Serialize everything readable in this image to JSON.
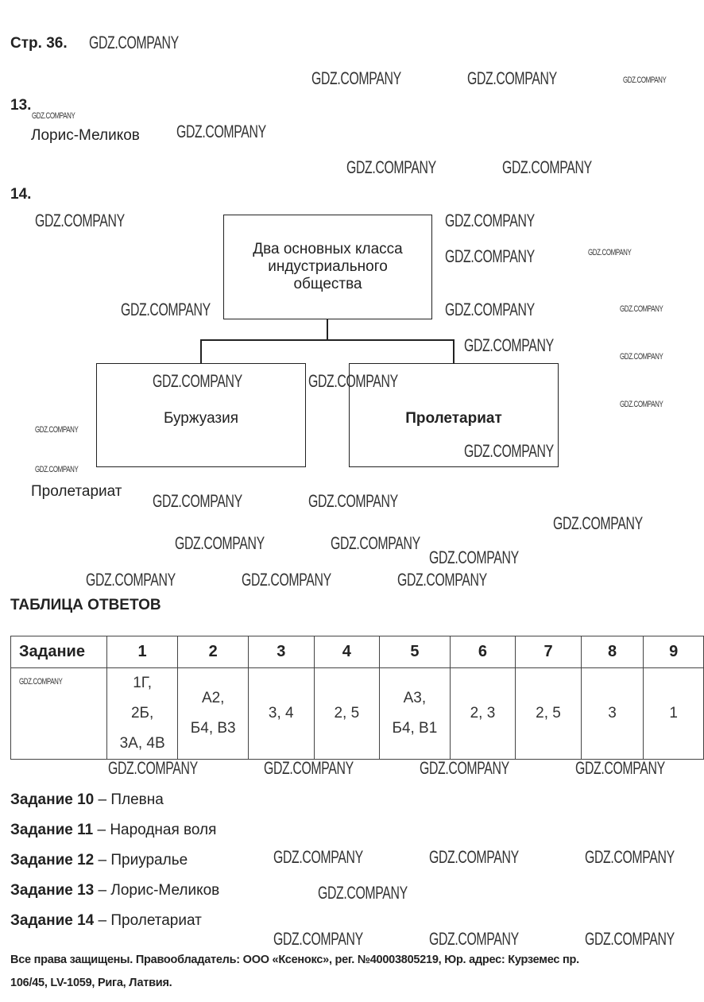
{
  "page_label": "Стр. 36.",
  "q13": {
    "number": "13.",
    "answer": "Лорис-Меликов"
  },
  "q14": {
    "number": "14.",
    "diagram": {
      "top": "Два основных класса индустриального общества",
      "left": "Буржуазия",
      "right": "Пролетариат"
    },
    "answer": "Пролетариат"
  },
  "answers_table": {
    "title": "ТАБЛИЦА ОТВЕТОВ",
    "header": [
      "Задание",
      "1",
      "2",
      "3",
      "4",
      "5",
      "6",
      "7",
      "8",
      "9"
    ],
    "row": [
      [
        "",
        ""
      ],
      [
        "1Г,",
        "2Б,",
        "3А, 4В"
      ],
      [
        "А2,",
        "Б4, В3"
      ],
      [
        "3, 4"
      ],
      [
        "2, 5"
      ],
      [
        "А3,",
        "Б4, В1"
      ],
      [
        "2, 3"
      ],
      [
        "2, 5"
      ],
      [
        "3"
      ],
      [
        "1"
      ]
    ]
  },
  "tasks": [
    {
      "label": "Задание 10",
      "answer": "– Плевна"
    },
    {
      "label": "Задание 11",
      "answer": "– Народная воля"
    },
    {
      "label": "Задание 12",
      "answer": "– Приуралье"
    },
    {
      "label": "Задание 13",
      "answer": "– Лорис-Меликов"
    },
    {
      "label": "Задание 14",
      "answer": "– Пролетариат"
    }
  ],
  "footer": {
    "line1": "Все права защищены. Правообладатель: ООО «Ксенокс», рег. №40003805219, Юр. адрес: Курземес пр.",
    "line2": "106/45, LV-1059, Рига, Латвия."
  },
  "watermark": "GDZ.COMPANY"
}
